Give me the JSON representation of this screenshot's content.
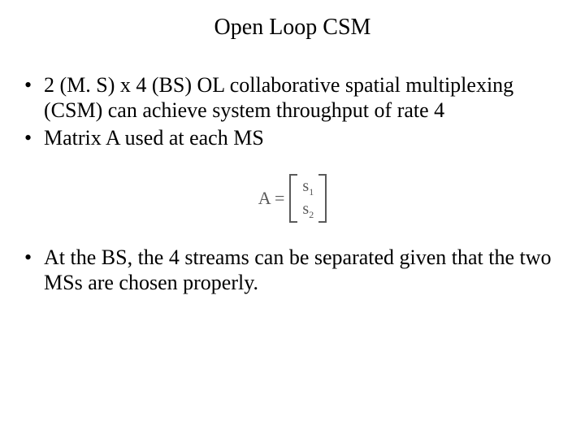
{
  "title": "Open Loop  CSM",
  "bullets": {
    "b1": "2 (M. S) x 4 (BS) OL collaborative spatial multiplexing (CSM) can achieve system throughput of rate 4",
    "b2": "Matrix A used at each MS",
    "b3": "At the BS, the 4 streams can be separated given that the two MSs are chosen properly."
  },
  "equation": {
    "lhs": "A =",
    "r1_base": "s",
    "r1_sub": "1",
    "r2_base": "s",
    "r2_sub": "2"
  },
  "colors": {
    "background": "#ffffff",
    "text": "#000000",
    "equation": "#5a5a5a"
  },
  "fonts": {
    "family": "Times New Roman",
    "title_size_pt": 28,
    "body_size_pt": 26,
    "equation_size_pt": 22
  }
}
